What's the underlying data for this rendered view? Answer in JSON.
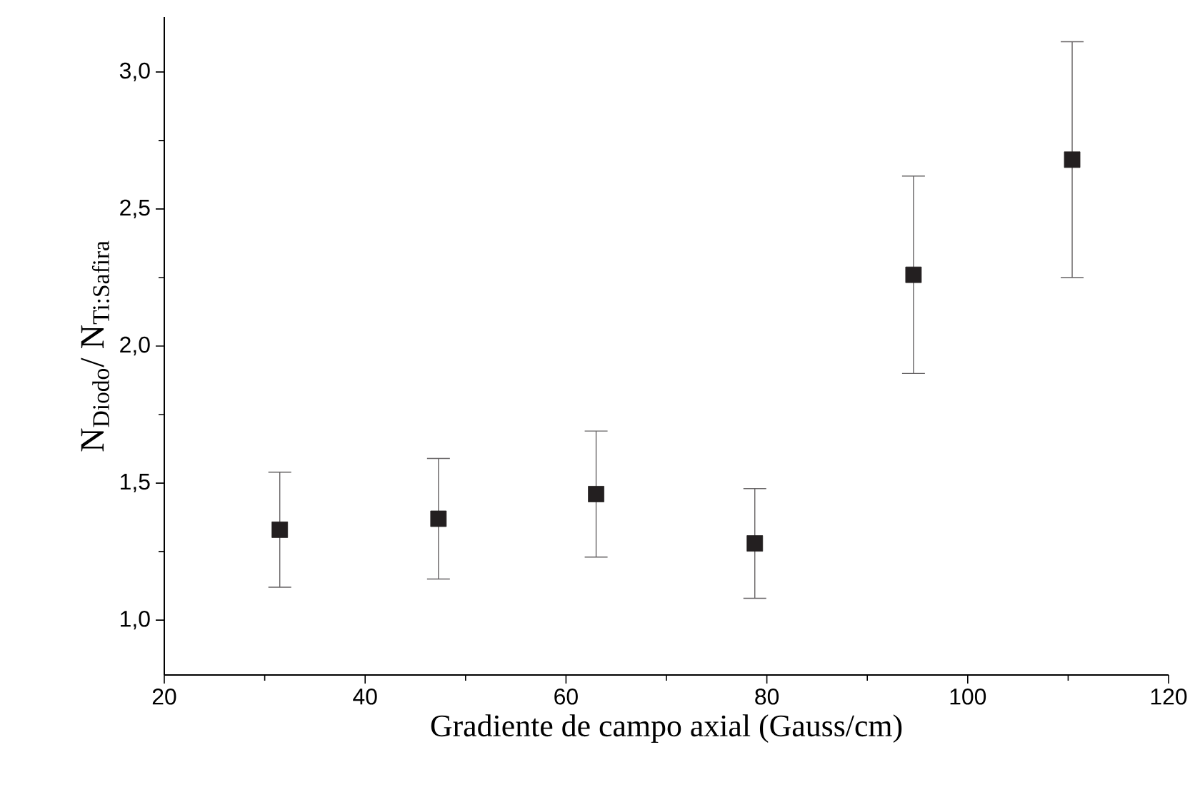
{
  "chart_data": {
    "type": "scatter",
    "xlabel": "Gradiente de campo axial (Gauss/cm)",
    "ylabel": "N$_{Diodo}$/ N$_{Ti:Safira}$",
    "x": [
      31.5,
      47.3,
      63.0,
      78.8,
      94.6,
      110.4
    ],
    "values": [
      1.33,
      1.37,
      1.46,
      1.28,
      2.26,
      2.68
    ],
    "errors": [
      0.21,
      0.22,
      0.23,
      0.2,
      0.36,
      0.43
    ],
    "color": "#231f20",
    "marker": "square",
    "xlim": [
      20,
      120
    ],
    "ylim": [
      0.8,
      3.2
    ],
    "xticks": [
      20,
      40,
      60,
      80,
      100,
      120
    ],
    "yticks": [
      {
        "value": 1.0,
        "label": "1,0"
      },
      {
        "value": 1.5,
        "label": "1,5"
      },
      {
        "value": 2.0,
        "label": "2,0"
      },
      {
        "value": 2.5,
        "label": "2,5"
      },
      {
        "value": 3.0,
        "label": "3,0"
      }
    ],
    "grid": false
  }
}
